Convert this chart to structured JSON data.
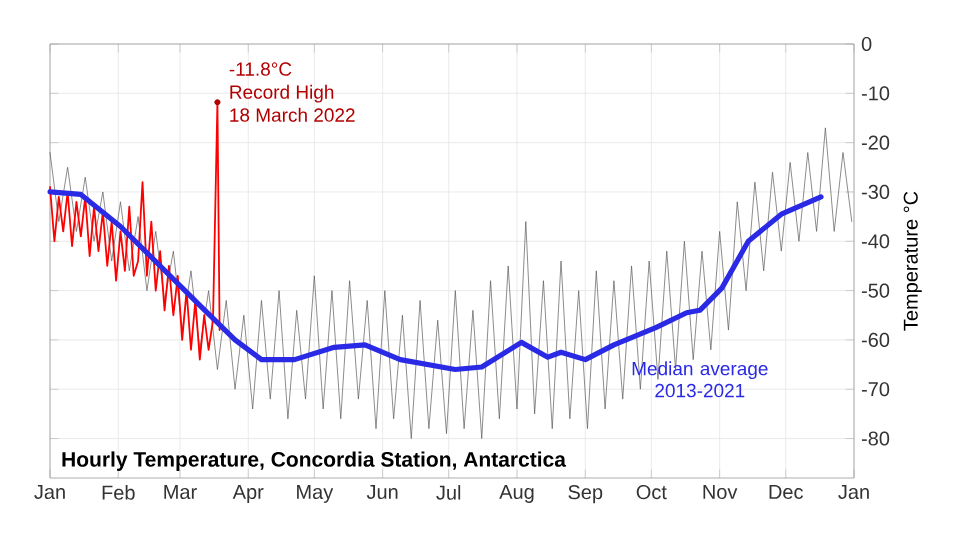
{
  "chart_data": {
    "type": "line",
    "title": "Hourly Temperature, Concordia Station, Antarctica",
    "ylabel": "Temperature °C",
    "xlim": [
      "2022-01-01",
      "2023-01-01"
    ],
    "ylim": [
      -88,
      0
    ],
    "grid": true,
    "xticks": [
      {
        "value": "2022-01-01",
        "label": "Jan"
      },
      {
        "value": "2022-02-01",
        "label": "Feb"
      },
      {
        "value": "2022-03-01",
        "label": "Mar"
      },
      {
        "value": "2022-04-01",
        "label": "Apr"
      },
      {
        "value": "2022-05-01",
        "label": "May"
      },
      {
        "value": "2022-06-01",
        "label": "Jun"
      },
      {
        "value": "2022-07-01",
        "label": "Jul"
      },
      {
        "value": "2022-08-01",
        "label": "Aug"
      },
      {
        "value": "2022-09-01",
        "label": "Sep"
      },
      {
        "value": "2022-10-01",
        "label": "Oct"
      },
      {
        "value": "2022-11-01",
        "label": "Nov"
      },
      {
        "value": "2022-12-01",
        "label": "Dec"
      },
      {
        "value": "2023-01-01",
        "label": "Jan"
      }
    ],
    "yticks": [
      0,
      -10,
      -20,
      -30,
      -40,
      -50,
      -60,
      -70,
      -80
    ],
    "series": [
      {
        "color": "#5a5a5a",
        "x": [
          "2022-01-01",
          "2022-01-05",
          "2022-01-09",
          "2022-01-13",
          "2022-01-17",
          "2022-01-21",
          "2022-01-25",
          "2022-01-29",
          "2022-02-02",
          "2022-02-06",
          "2022-02-10",
          "2022-02-14",
          "2022-02-18",
          "2022-02-22",
          "2022-02-26",
          "2022-03-02",
          "2022-03-06",
          "2022-03-10",
          "2022-03-14",
          "2022-03-18",
          "2022-03-22",
          "2022-03-26",
          "2022-03-30",
          "2022-04-03",
          "2022-04-07",
          "2022-04-11",
          "2022-04-15",
          "2022-04-19",
          "2022-04-23",
          "2022-04-27",
          "2022-05-01",
          "2022-05-05",
          "2022-05-09",
          "2022-05-13",
          "2022-05-17",
          "2022-05-21",
          "2022-05-25",
          "2022-05-29",
          "2022-06-02",
          "2022-06-06",
          "2022-06-10",
          "2022-06-14",
          "2022-06-18",
          "2022-06-22",
          "2022-06-26",
          "2022-06-30",
          "2022-07-04",
          "2022-07-08",
          "2022-07-12",
          "2022-07-16",
          "2022-07-20",
          "2022-07-24",
          "2022-07-28",
          "2022-08-01",
          "2022-08-05",
          "2022-08-09",
          "2022-08-13",
          "2022-08-17",
          "2022-08-21",
          "2022-08-25",
          "2022-08-29",
          "2022-09-02",
          "2022-09-06",
          "2022-09-10",
          "2022-09-14",
          "2022-09-18",
          "2022-09-22",
          "2022-09-26",
          "2022-09-30",
          "2022-10-04",
          "2022-10-08",
          "2022-10-12",
          "2022-10-16",
          "2022-10-20",
          "2022-10-24",
          "2022-10-28",
          "2022-11-01",
          "2022-11-05",
          "2022-11-09",
          "2022-11-13",
          "2022-11-17",
          "2022-11-21",
          "2022-11-25",
          "2022-11-29",
          "2022-12-03",
          "2022-12-07",
          "2022-12-11",
          "2022-12-15",
          "2022-12-19",
          "2022-12-23",
          "2022-12-27",
          "2022-12-31"
        ],
        "values": [
          -22,
          -36,
          -25,
          -38,
          -27,
          -40,
          -30,
          -44,
          -32,
          -46,
          -35,
          -50,
          -38,
          -52,
          -42,
          -58,
          -46,
          -62,
          -50,
          -66,
          -52,
          -70,
          -55,
          -74,
          -52,
          -72,
          -50,
          -76,
          -54,
          -72,
          -47,
          -74,
          -50,
          -76,
          -48,
          -72,
          -52,
          -78,
          -50,
          -76,
          -55,
          -80,
          -52,
          -78,
          -56,
          -79,
          -50,
          -78,
          -54,
          -80,
          -48,
          -76,
          -45,
          -74,
          -36,
          -75,
          -48,
          -78,
          -44,
          -76,
          -50,
          -78,
          -46,
          -74,
          -48,
          -72,
          -45,
          -70,
          -44,
          -68,
          -42,
          -66,
          -40,
          -64,
          -42,
          -62,
          -38,
          -58,
          -32,
          -50,
          -28,
          -46,
          -26,
          -42,
          -24,
          -40,
          -22,
          -38,
          -17,
          -38,
          -22,
          -36
        ]
      },
      {
        "color": "#ff0000",
        "x": [
          "2022-01-01",
          "2022-01-03",
          "2022-01-05",
          "2022-01-07",
          "2022-01-09",
          "2022-01-11",
          "2022-01-13",
          "2022-01-15",
          "2022-01-17",
          "2022-01-19",
          "2022-01-21",
          "2022-01-23",
          "2022-01-25",
          "2022-01-27",
          "2022-01-29",
          "2022-01-31",
          "2022-02-02",
          "2022-02-04",
          "2022-02-06",
          "2022-02-08",
          "2022-02-10",
          "2022-02-12",
          "2022-02-14",
          "2022-02-16",
          "2022-02-18",
          "2022-02-20",
          "2022-02-22",
          "2022-02-24",
          "2022-02-26",
          "2022-02-28",
          "2022-03-02",
          "2022-03-04",
          "2022-03-06",
          "2022-03-08",
          "2022-03-10",
          "2022-03-12",
          "2022-03-14",
          "2022-03-16",
          "2022-03-18",
          "2022-03-19"
        ],
        "values": [
          -29,
          -40,
          -31,
          -38,
          -30,
          -41,
          -32,
          -39,
          -31,
          -43,
          -33,
          -42,
          -34,
          -45,
          -36,
          -48,
          -38,
          -46,
          -33,
          -47,
          -44,
          -28,
          -47,
          -36,
          -50,
          -42,
          -54,
          -45,
          -55,
          -47,
          -60,
          -50,
          -62,
          -52,
          -64,
          -55,
          -62,
          -56,
          -11.8,
          -58
        ]
      },
      {
        "name": "Median average 2013-2021",
        "color": "#2a2ae6",
        "x": [
          "2022-01-01",
          "2022-01-15",
          "2022-02-02",
          "2022-02-20",
          "2022-03-10",
          "2022-03-26",
          "2022-04-07",
          "2022-04-22",
          "2022-05-10",
          "2022-05-24",
          "2022-06-09",
          "2022-07-04",
          "2022-07-16",
          "2022-08-03",
          "2022-08-15",
          "2022-08-21",
          "2022-09-01",
          "2022-09-14",
          "2022-10-03",
          "2022-10-17",
          "2022-10-23",
          "2022-11-02",
          "2022-11-14",
          "2022-11-29",
          "2022-12-17"
        ],
        "values": [
          -30,
          -30.5,
          -37,
          -45,
          -53,
          -60,
          -64,
          -64,
          -61.5,
          -61,
          -64,
          -66,
          -65.5,
          -60.5,
          -63.5,
          -62.5,
          -64,
          -61,
          -57.5,
          -54.5,
          -54,
          -49.5,
          -40,
          -34.5,
          -31
        ]
      }
    ],
    "annotations": [
      {
        "text": "-11.8°C",
        "x": "2022-03-18",
        "y": -11.8
      },
      "Record High",
      "18 March 2022"
    ]
  }
}
